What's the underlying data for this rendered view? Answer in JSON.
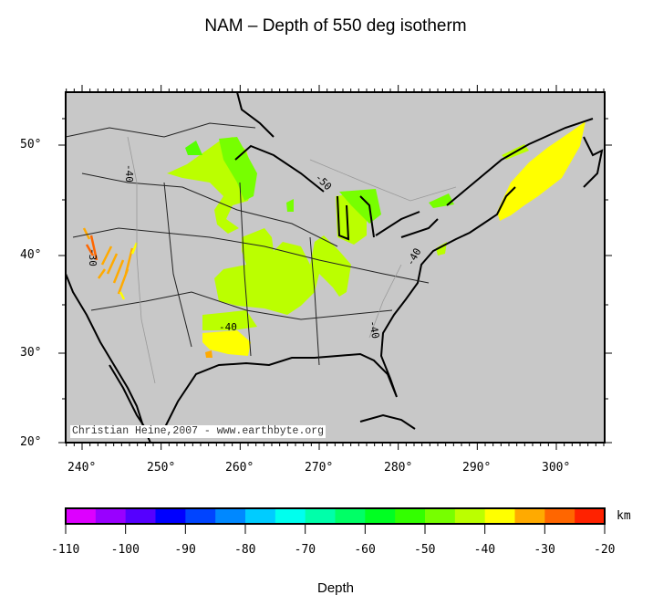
{
  "title": "NAM – Depth of 550 deg isotherm",
  "map": {
    "longitude_labels": [
      "240°",
      "250°",
      "260°",
      "270°",
      "280°",
      "290°",
      "300°"
    ],
    "latitude_labels": [
      "50°",
      "40°",
      "30°",
      "20°"
    ],
    "credit": "Christian Heine,2007 - www.earthbyte.org",
    "contour_labels": [
      "-40",
      "-30",
      "-50",
      "-40",
      "-40",
      "-40"
    ],
    "land_color": "#c8c8c8"
  },
  "colorbar": {
    "label": "Depth",
    "unit": "km",
    "range": [
      -110,
      -20
    ],
    "tick_labels": [
      "-110",
      "-100",
      "-90",
      "-80",
      "-70",
      "-60",
      "-50",
      "-40",
      "-30",
      "-20"
    ],
    "colors": [
      "#dd00ff",
      "#9900ff",
      "#5500ff",
      "#0000ff",
      "#0044ff",
      "#0088ff",
      "#00ccff",
      "#00ffee",
      "#00ffaa",
      "#00ff66",
      "#00ff22",
      "#33ff00",
      "#77ff00",
      "#bbff00",
      "#ffff00",
      "#ffaa00",
      "#ff6600",
      "#ff2200"
    ]
  }
}
